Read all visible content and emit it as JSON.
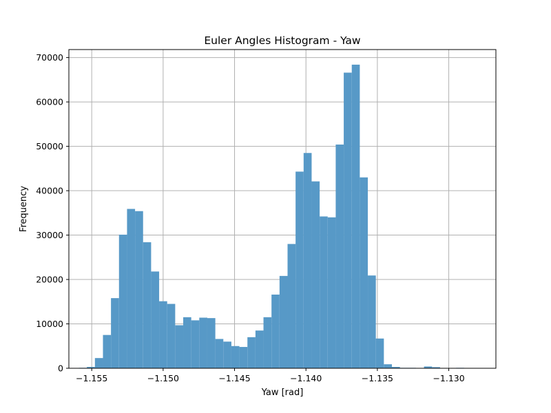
{
  "chart_data": {
    "type": "bar",
    "title": "Euler Angles Histogram - Yaw",
    "xlabel": "Yaw [rad]",
    "ylabel": "Frequency",
    "xlim": [
      -1.1566,
      -1.1267
    ],
    "ylim": [
      0,
      71800
    ],
    "grid": true,
    "bar_color": "#5799c7",
    "bin_start": -1.1559,
    "bin_width": 0.000562,
    "counts": [
      100,
      300,
      2300,
      7500,
      15800,
      30100,
      35900,
      35400,
      28400,
      21800,
      15100,
      14500,
      9700,
      11500,
      10800,
      11400,
      11300,
      6600,
      6000,
      5000,
      4800,
      7000,
      8500,
      11500,
      16600,
      20800,
      28000,
      44300,
      48500,
      42100,
      34200,
      34000,
      50400,
      66600,
      68400,
      43000,
      20900,
      6700,
      900,
      300,
      100,
      100,
      0,
      400,
      250,
      80,
      0,
      100,
      0,
      0
    ],
    "x_ticks": [
      {
        "value": -1.155,
        "label": "−1.155"
      },
      {
        "value": -1.15,
        "label": "−1.150"
      },
      {
        "value": -1.145,
        "label": "−1.145"
      },
      {
        "value": -1.14,
        "label": "−1.140"
      },
      {
        "value": -1.135,
        "label": "−1.135"
      },
      {
        "value": -1.13,
        "label": "−1.130"
      }
    ],
    "y_ticks": [
      {
        "value": 0,
        "label": "0"
      },
      {
        "value": 10000,
        "label": "10000"
      },
      {
        "value": 20000,
        "label": "20000"
      },
      {
        "value": 30000,
        "label": "30000"
      },
      {
        "value": 40000,
        "label": "40000"
      },
      {
        "value": 50000,
        "label": "50000"
      },
      {
        "value": 60000,
        "label": "60000"
      },
      {
        "value": 70000,
        "label": "70000"
      }
    ]
  }
}
